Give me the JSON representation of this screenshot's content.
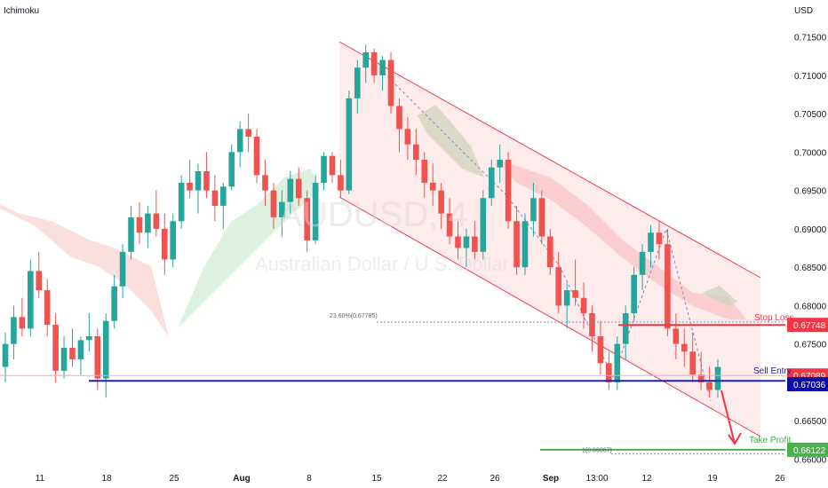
{
  "header": {
    "indicator": "Ichimoku",
    "currency": "USD"
  },
  "watermark": {
    "symbol": "AUDUSD, 4",
    "name": "Australian Dollar / U.S. Dollar"
  },
  "chart_data": {
    "type": "candlestick",
    "price_range": [
      0.6597,
      0.7175
    ],
    "yticks": [
      "0.71500",
      "0.71000",
      "0.70500",
      "0.70000",
      "0.69500",
      "0.69000",
      "0.68500",
      "0.68000",
      "0.67500",
      "0.67000",
      "0.66500",
      "0.66000"
    ],
    "xticks": [
      "11",
      "18",
      "25",
      "Aug",
      "8",
      "15",
      "22",
      "26",
      "Sep",
      "13:00",
      "12",
      "19",
      "26"
    ],
    "levels": {
      "stop_loss": {
        "label": "Stop Loss",
        "value": "0.67748",
        "price": 0.67748,
        "color": "#f23645"
      },
      "sell_entry": {
        "label": "Sell Entry",
        "value": "0.67089",
        "price": 0.67089,
        "color": "#1e22aa"
      },
      "current": {
        "value": "0.67036",
        "price": 0.67036,
        "color": "#0c0ca8"
      },
      "take_profit": {
        "label": "Take Profit",
        "value": "0.66122",
        "price": 0.66122,
        "color": "#4caf50"
      }
    },
    "fib_labels": {
      "upper": "23.60%(0.67785)",
      "lower": "1(0.66067)"
    },
    "candles": [
      [
        0.672,
        0.6765,
        0.67,
        0.675
      ],
      [
        0.675,
        0.68,
        0.673,
        0.6785
      ],
      [
        0.6785,
        0.681,
        0.676,
        0.677
      ],
      [
        0.677,
        0.686,
        0.676,
        0.6845
      ],
      [
        0.6845,
        0.687,
        0.681,
        0.682
      ],
      [
        0.682,
        0.6835,
        0.676,
        0.6775
      ],
      [
        0.6775,
        0.679,
        0.67,
        0.6715
      ],
      [
        0.6715,
        0.676,
        0.6705,
        0.6745
      ],
      [
        0.6745,
        0.677,
        0.672,
        0.673
      ],
      [
        0.673,
        0.676,
        0.671,
        0.6755
      ],
      [
        0.6755,
        0.679,
        0.674,
        0.676
      ],
      [
        0.676,
        0.677,
        0.669,
        0.6705
      ],
      [
        0.6705,
        0.679,
        0.668,
        0.678
      ],
      [
        0.678,
        0.684,
        0.677,
        0.6825
      ],
      [
        0.6825,
        0.688,
        0.681,
        0.687
      ],
      [
        0.687,
        0.693,
        0.686,
        0.6915
      ],
      [
        0.6915,
        0.6935,
        0.688,
        0.6895
      ],
      [
        0.6895,
        0.693,
        0.6875,
        0.692
      ],
      [
        0.692,
        0.695,
        0.689,
        0.69
      ],
      [
        0.69,
        0.692,
        0.684,
        0.686
      ],
      [
        0.686,
        0.692,
        0.685,
        0.691
      ],
      [
        0.691,
        0.697,
        0.69,
        0.696
      ],
      [
        0.696,
        0.699,
        0.694,
        0.695
      ],
      [
        0.695,
        0.6985,
        0.692,
        0.6975
      ],
      [
        0.6975,
        0.7,
        0.694,
        0.695
      ],
      [
        0.695,
        0.697,
        0.691,
        0.693
      ],
      [
        0.693,
        0.696,
        0.69,
        0.6955
      ],
      [
        0.6955,
        0.701,
        0.695,
        0.7
      ],
      [
        0.7,
        0.704,
        0.698,
        0.703
      ],
      [
        0.703,
        0.705,
        0.7,
        0.702
      ],
      [
        0.702,
        0.703,
        0.696,
        0.697
      ],
      [
        0.697,
        0.699,
        0.693,
        0.695
      ],
      [
        0.695,
        0.696,
        0.69,
        0.6915
      ],
      [
        0.6915,
        0.695,
        0.689,
        0.6935
      ],
      [
        0.6935,
        0.6975,
        0.692,
        0.6965
      ],
      [
        0.6965,
        0.698,
        0.693,
        0.694
      ],
      [
        0.694,
        0.695,
        0.687,
        0.6885
      ],
      [
        0.6885,
        0.697,
        0.688,
        0.696
      ],
      [
        0.696,
        0.7,
        0.695,
        0.6995
      ],
      [
        0.6995,
        0.7,
        0.696,
        0.697
      ],
      [
        0.697,
        0.699,
        0.694,
        0.695
      ],
      [
        0.695,
        0.708,
        0.6945,
        0.707
      ],
      [
        0.707,
        0.712,
        0.705,
        0.711
      ],
      [
        0.711,
        0.714,
        0.709,
        0.713
      ],
      [
        0.713,
        0.7135,
        0.709,
        0.71
      ],
      [
        0.71,
        0.7125,
        0.708,
        0.712
      ],
      [
        0.712,
        0.713,
        0.705,
        0.706
      ],
      [
        0.706,
        0.707,
        0.7,
        0.703
      ],
      [
        0.703,
        0.7045,
        0.699,
        0.701
      ],
      [
        0.701,
        0.703,
        0.697,
        0.699
      ],
      [
        0.699,
        0.7,
        0.694,
        0.696
      ],
      [
        0.696,
        0.6985,
        0.693,
        0.695
      ],
      [
        0.695,
        0.696,
        0.69,
        0.692
      ],
      [
        0.692,
        0.694,
        0.688,
        0.689
      ],
      [
        0.689,
        0.691,
        0.686,
        0.6875
      ],
      [
        0.6875,
        0.69,
        0.685,
        0.689
      ],
      [
        0.689,
        0.691,
        0.686,
        0.687
      ],
      [
        0.687,
        0.695,
        0.686,
        0.694
      ],
      [
        0.694,
        0.699,
        0.693,
        0.698
      ],
      [
        0.698,
        0.701,
        0.696,
        0.699
      ],
      [
        0.699,
        0.7,
        0.69,
        0.691
      ],
      [
        0.691,
        0.693,
        0.684,
        0.685
      ],
      [
        0.685,
        0.692,
        0.684,
        0.691
      ],
      [
        0.691,
        0.696,
        0.689,
        0.694
      ],
      [
        0.694,
        0.695,
        0.688,
        0.689
      ],
      [
        0.689,
        0.69,
        0.684,
        0.685
      ],
      [
        0.685,
        0.687,
        0.679,
        0.68
      ],
      [
        0.68,
        0.683,
        0.677,
        0.682
      ],
      [
        0.682,
        0.686,
        0.68,
        0.681
      ],
      [
        0.681,
        0.683,
        0.677,
        0.679
      ],
      [
        0.679,
        0.68,
        0.674,
        0.676
      ],
      [
        0.676,
        0.678,
        0.671,
        0.6725
      ],
      [
        0.6725,
        0.674,
        0.669,
        0.67
      ],
      [
        0.67,
        0.676,
        0.669,
        0.675
      ],
      [
        0.675,
        0.68,
        0.673,
        0.679
      ],
      [
        0.679,
        0.685,
        0.678,
        0.684
      ],
      [
        0.684,
        0.688,
        0.682,
        0.687
      ],
      [
        0.687,
        0.6905,
        0.685,
        0.6895
      ],
      [
        0.6895,
        0.691,
        0.686,
        0.688
      ],
      [
        0.688,
        0.69,
        0.676,
        0.677
      ],
      [
        0.677,
        0.679,
        0.673,
        0.675
      ],
      [
        0.675,
        0.677,
        0.672,
        0.674
      ],
      [
        0.674,
        0.6765,
        0.67,
        0.671
      ],
      [
        0.671,
        0.674,
        0.669,
        0.67
      ],
      [
        0.67,
        0.672,
        0.668,
        0.669
      ],
      [
        0.669,
        0.673,
        0.668,
        0.672
      ]
    ]
  }
}
